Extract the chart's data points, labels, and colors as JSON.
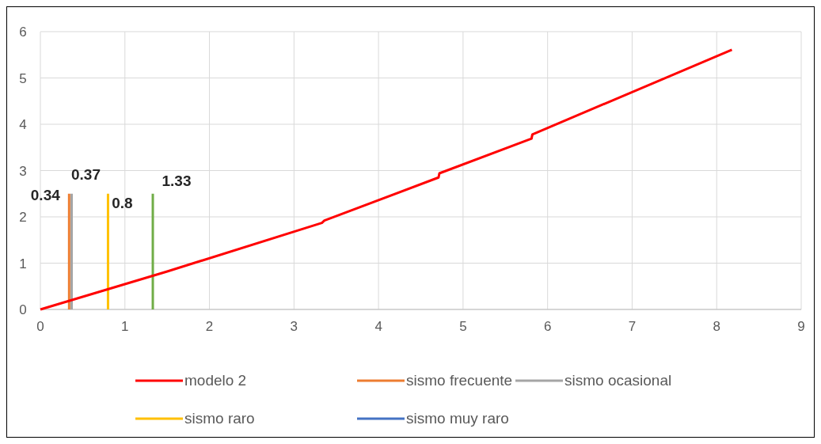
{
  "chart_data": {
    "type": "line",
    "xlim": [
      0,
      9
    ],
    "xticks": [
      0,
      1,
      2,
      3,
      4,
      5,
      6,
      7,
      8,
      9
    ],
    "ylim": [
      0,
      6
    ],
    "yticks": [
      0,
      1,
      2,
      3,
      4,
      5,
      6
    ],
    "grid": true,
    "legend": "bottom",
    "marker": "none",
    "line_style": "solid",
    "series": [
      {
        "name": "modelo 2",
        "color": "#ff0000",
        "x": [
          0,
          1.5,
          3.33,
          3.36,
          4.71,
          4.72,
          5.81,
          5.82,
          8.18
        ],
        "values": [
          0,
          0.82,
          1.87,
          1.92,
          2.85,
          2.94,
          3.69,
          3.78,
          5.61
        ]
      },
      {
        "name": "sismo frecuente",
        "color": "#ed7d31",
        "x": [
          0.34,
          0.34
        ],
        "values": [
          0,
          2.5
        ]
      },
      {
        "name": "sismo ocasional",
        "color": "#a5a5a5",
        "x": [
          0.37,
          0.37
        ],
        "values": [
          0,
          2.5
        ]
      },
      {
        "name": "sismo raro",
        "color": "#ffc000",
        "x": [
          0.8,
          0.8
        ],
        "values": [
          0,
          2.5
        ]
      },
      {
        "name": "sismo muy raro",
        "color": "#4472c4"
      },
      {
        "color": "#70ad47",
        "x": [
          1.33,
          1.33
        ],
        "values": [
          0,
          2.5
        ]
      }
    ],
    "annotations": [
      {
        "text": "0.34",
        "x": 0.34,
        "y": 2.5
      },
      {
        "text": "0.37",
        "x": 0.37,
        "y": 2.5
      },
      {
        "text": "0.8",
        "x": 0.8,
        "y": 2.5
      },
      {
        "text": "1.33",
        "x": 1.33,
        "y": 2.5
      }
    ]
  }
}
